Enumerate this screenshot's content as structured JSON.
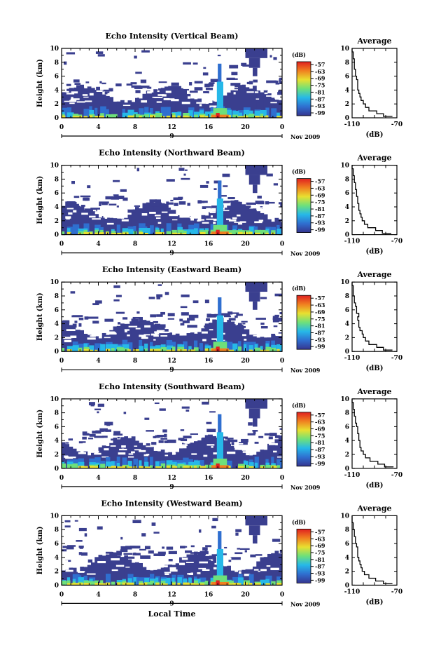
{
  "page": {
    "xlabel": "Local Time"
  },
  "palette": {
    "background": "#ffffff",
    "echo_base": "#3a3f8f",
    "colorbar_stops": [
      "#35358f",
      "#2f6fd0",
      "#26b8e8",
      "#6ee07a",
      "#e8e030",
      "#f08020",
      "#e02020"
    ]
  },
  "chart_data": [
    {
      "type": "heatmap",
      "title": "Echo Intensity (Vertical Beam)",
      "ylabel": "Height (km)",
      "xlim": [
        0,
        24
      ],
      "ylim": [
        0,
        10
      ],
      "x_ticks": [
        "0",
        "4",
        "8",
        "12",
        "16",
        "20",
        "0"
      ],
      "y_ticks": [
        "0",
        "2",
        "4",
        "6",
        "8",
        "10"
      ],
      "day_label": "9",
      "month_label": "Nov 2009",
      "colorbar": {
        "label": "(dB)",
        "ticks": [
          "-57",
          "-63",
          "-69",
          "-75",
          "-81",
          "-87",
          "-93",
          "-99"
        ]
      },
      "average_profile": {
        "title": "Average",
        "xlabel": "(dB)",
        "xlim": [
          -110,
          -70
        ],
        "x_ticks": [
          "-110",
          "-70"
        ],
        "y_ticks": [
          "0",
          "2",
          "4",
          "6",
          "8",
          "10"
        ],
        "height_km": [
          0.2,
          0.6,
          1,
          1.5,
          2,
          2.5,
          3,
          3.5,
          4,
          4.5,
          5,
          5.5,
          6,
          6.5,
          7,
          7.5,
          8,
          8.5,
          9,
          9.5,
          10
        ],
        "power_db": [
          -74,
          -82,
          -88,
          -95,
          -98,
          -100,
          -102,
          -103,
          -104,
          -105,
          -105,
          -105,
          -106,
          -107,
          -107,
          -108,
          -108,
          -108,
          -109,
          -109,
          -110
        ]
      }
    },
    {
      "type": "heatmap",
      "title": "Echo Intensity (Northward Beam)",
      "ylabel": "Height (km)",
      "xlim": [
        0,
        24
      ],
      "ylim": [
        0,
        10
      ],
      "x_ticks": [
        "0",
        "4",
        "8",
        "12",
        "16",
        "20",
        "0"
      ],
      "y_ticks": [
        "0",
        "2",
        "4",
        "6",
        "8",
        "10"
      ],
      "day_label": "9",
      "month_label": "Nov 2009",
      "colorbar": {
        "label": "(dB)",
        "ticks": [
          "-57",
          "-63",
          "-69",
          "-75",
          "-81",
          "-87",
          "-93",
          "-99"
        ]
      },
      "average_profile": {
        "title": "Average",
        "xlabel": "(dB)",
        "xlim": [
          -110,
          -70
        ],
        "x_ticks": [
          "-110",
          "-70"
        ],
        "y_ticks": [
          "0",
          "2",
          "4",
          "6",
          "8",
          "10"
        ],
        "height_km": [
          0.2,
          0.6,
          1,
          1.5,
          2,
          2.5,
          3,
          3.5,
          4,
          4.5,
          5,
          5.5,
          6,
          6.5,
          7,
          7.5,
          8,
          8.5,
          9,
          9.5,
          10
        ],
        "power_db": [
          -75,
          -83,
          -89,
          -96,
          -99,
          -101,
          -102,
          -103,
          -104,
          -104,
          -105,
          -105,
          -106,
          -106,
          -107,
          -107,
          -108,
          -108,
          -109,
          -109,
          -110
        ]
      }
    },
    {
      "type": "heatmap",
      "title": "Echo Intensity (Eastward Beam)",
      "ylabel": "Height (km)",
      "xlim": [
        0,
        24
      ],
      "ylim": [
        0,
        10
      ],
      "x_ticks": [
        "0",
        "4",
        "8",
        "12",
        "16",
        "20",
        "0"
      ],
      "y_ticks": [
        "0",
        "2",
        "4",
        "6",
        "8",
        "10"
      ],
      "day_label": "9",
      "month_label": "Nov 2009",
      "colorbar": {
        "label": "(dB)",
        "ticks": [
          "-57",
          "-63",
          "-69",
          "-75",
          "-81",
          "-87",
          "-93",
          "-99"
        ]
      },
      "average_profile": {
        "title": "Average",
        "xlabel": "(dB)",
        "xlim": [
          -110,
          -70
        ],
        "x_ticks": [
          "-110",
          "-70"
        ],
        "y_ticks": [
          "0",
          "2",
          "4",
          "6",
          "8",
          "10"
        ],
        "height_km": [
          0.2,
          0.6,
          1,
          1.5,
          2,
          2.5,
          3,
          3.5,
          4,
          4.5,
          5,
          5.5,
          6,
          6.5,
          7,
          7.5,
          8,
          8.5,
          9,
          9.5,
          10
        ],
        "power_db": [
          -74,
          -82,
          -88,
          -95,
          -98,
          -100,
          -101,
          -103,
          -104,
          -104,
          -105,
          -104,
          -106,
          -106,
          -107,
          -108,
          -108,
          -109,
          -109,
          -109,
          -110
        ]
      }
    },
    {
      "type": "heatmap",
      "title": "Echo Intensity (Southward Beam)",
      "ylabel": "Height (km)",
      "xlim": [
        0,
        24
      ],
      "ylim": [
        0,
        10
      ],
      "x_ticks": [
        "0",
        "4",
        "8",
        "12",
        "16",
        "20",
        "0"
      ],
      "y_ticks": [
        "0",
        "2",
        "4",
        "6",
        "8",
        "10"
      ],
      "day_label": "9",
      "month_label": "Nov 2009",
      "colorbar": {
        "label": "(dB)",
        "ticks": [
          "-57",
          "-63",
          "-69",
          "-75",
          "-81",
          "-87",
          "-93",
          "-99"
        ]
      },
      "average_profile": {
        "title": "Average",
        "xlabel": "(dB)",
        "xlim": [
          -110,
          -70
        ],
        "x_ticks": [
          "-110",
          "-70"
        ],
        "y_ticks": [
          "0",
          "2",
          "4",
          "6",
          "8",
          "10"
        ],
        "height_km": [
          0.2,
          0.6,
          1,
          1.5,
          2,
          2.5,
          3,
          3.5,
          4,
          4.5,
          5,
          5.5,
          6,
          6.5,
          7,
          7.5,
          8,
          8.5,
          9,
          9.5,
          10
        ],
        "power_db": [
          -73,
          -81,
          -87,
          -94,
          -98,
          -100,
          -102,
          -103,
          -103,
          -104,
          -104,
          -105,
          -105,
          -106,
          -107,
          -107,
          -108,
          -108,
          -109,
          -109,
          -110
        ]
      }
    },
    {
      "type": "heatmap",
      "title": "Echo Intensity (Westward Beam)",
      "ylabel": "Height (km)",
      "xlim": [
        0,
        24
      ],
      "ylim": [
        0,
        10
      ],
      "x_ticks": [
        "0",
        "4",
        "8",
        "12",
        "16",
        "20",
        "0"
      ],
      "y_ticks": [
        "0",
        "2",
        "4",
        "6",
        "8",
        "10"
      ],
      "day_label": "9",
      "month_label": "Nov 2009",
      "colorbar": {
        "label": "(dB)",
        "ticks": [
          "-57",
          "-63",
          "-69",
          "-75",
          "-81",
          "-87",
          "-93",
          "-99"
        ]
      },
      "average_profile": {
        "title": "Average",
        "xlabel": "(dB)",
        "xlim": [
          -110,
          -70
        ],
        "x_ticks": [
          "-110",
          "-70"
        ],
        "y_ticks": [
          "0",
          "2",
          "4",
          "6",
          "8",
          "10"
        ],
        "height_km": [
          0.2,
          0.6,
          1,
          1.5,
          2,
          2.5,
          3,
          3.5,
          4,
          4.5,
          5,
          5.5,
          6,
          6.5,
          7,
          7.5,
          8,
          8.5,
          9,
          9.5,
          10
        ],
        "power_db": [
          -74,
          -82,
          -89,
          -95,
          -99,
          -101,
          -102,
          -103,
          -104,
          -105,
          -105,
          -105,
          -106,
          -107,
          -107,
          -108,
          -108,
          -109,
          -109,
          -110,
          -110
        ]
      }
    }
  ]
}
